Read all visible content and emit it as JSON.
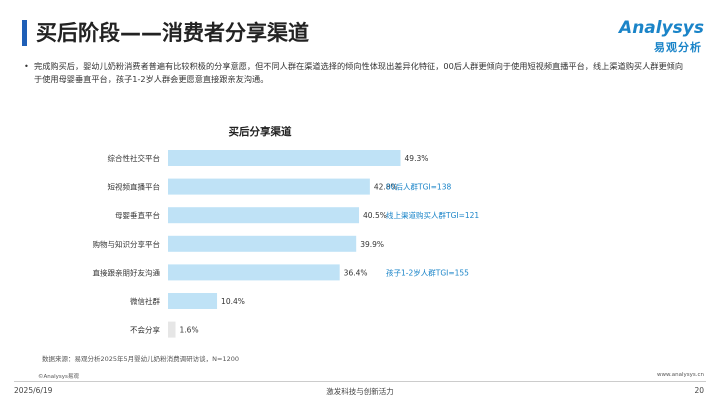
{
  "slide": {
    "title": "买后阶段——消费者分享渠道",
    "accent_color": "#1f5fb7"
  },
  "logo": {
    "en": "Analysys",
    "cn": "易观分析",
    "color": "#1a84c8"
  },
  "bullet": {
    "text": "完成购买后，婴幼儿奶粉消费者普遍有比较积极的分享意愿，但不同人群在渠道选择的倾向性体现出差异化特征，00后人群更倾向于使用短视频直播平台，线上渠道购买人群更倾向于使用母婴垂直平台，孩子1-2岁人群会更愿意直接跟亲友沟通。"
  },
  "chart_data": {
    "type": "bar",
    "orientation": "horizontal",
    "title": "买后分享渠道",
    "categories": [
      "综合性社交平台",
      "短视频直播平台",
      "母婴垂直平台",
      "购物与知识分享平台",
      "直接跟亲朋好友沟通",
      "微信社群",
      "不会分享"
    ],
    "values": [
      49.3,
      42.8,
      40.5,
      39.9,
      36.4,
      10.4,
      1.6
    ],
    "value_labels": [
      "49.3%",
      "42.8%",
      "40.5%",
      "39.9%",
      "36.4%",
      "10.4%",
      "1.6%"
    ],
    "unit": "%",
    "xlim": [
      0,
      60
    ],
    "bar_colors": [
      "#bfe2f6",
      "#bfe2f6",
      "#bfe2f6",
      "#bfe2f6",
      "#bfe2f6",
      "#bfe2f6",
      "#e6e6e6"
    ],
    "annotation_color": "#1a84c8",
    "annotations": [
      {
        "category_index": 1,
        "text": "00后人群TGI=138"
      },
      {
        "category_index": 2,
        "text": "线上渠道购买人群TGI=121"
      },
      {
        "category_index": 4,
        "text": "孩子1-2岁人群TGI=155"
      }
    ],
    "grid": false
  },
  "source": "数据来源：易观分析2025年5月婴幼儿奶粉消费调研访谈，N=1200",
  "copyright": "©Analysys易观",
  "website": "www.analysys.cn",
  "footer": {
    "date": "2025/6/19",
    "slogan": "激发科技与创新活力",
    "page": "20"
  }
}
